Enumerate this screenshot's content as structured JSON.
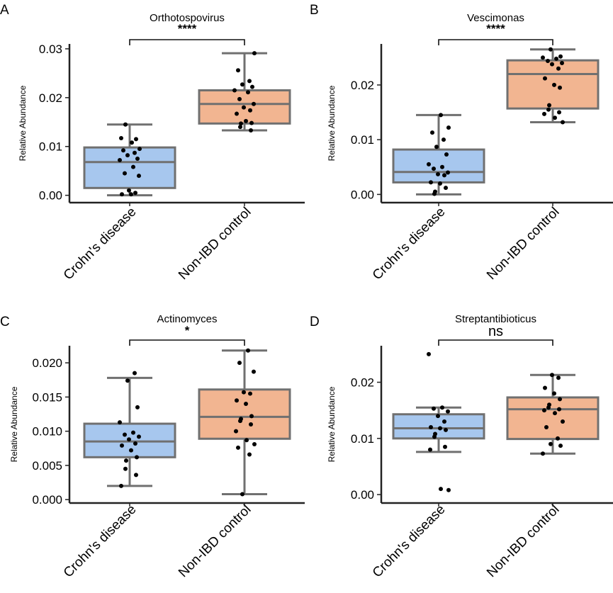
{
  "colors": {
    "crohns": "#a7c7ee",
    "control": "#f2b591",
    "whisker": "#707070",
    "point": "#000000"
  },
  "chart_data": [
    {
      "type": "box",
      "panel": "A",
      "title": "Orthotospovirus",
      "significance": "****",
      "ylabel": "Relative Abundance",
      "ylim": [
        -0.0015,
        0.031
      ],
      "yticks": [
        0,
        0.01,
        0.02,
        0.03
      ],
      "ytick_labels": [
        "0.00",
        "0.01",
        "0.02",
        "0.03"
      ],
      "categories": [
        "Crohn's disease",
        "Non-IBD control"
      ],
      "boxes": [
        {
          "q1": 0.0015,
          "median": 0.0068,
          "q3": 0.0098,
          "whisker_low": 0.0,
          "whisker_high": 0.0145
        },
        {
          "q1": 0.0147,
          "median": 0.0187,
          "q3": 0.0215,
          "whisker_low": 0.0133,
          "whisker_high": 0.0291
        }
      ],
      "points": [
        [
          0.0145,
          0.0115,
          0.0117,
          0.0108,
          0.0095,
          0.0092,
          0.0087,
          0.0082,
          0.0075,
          0.0072,
          0.0058,
          0.0045,
          0.004,
          0.001,
          0.0005,
          0.0002,
          0.0002
        ],
        [
          0.0291,
          0.0256,
          0.0234,
          0.0227,
          0.0222,
          0.0215,
          0.0211,
          0.0197,
          0.0187,
          0.018,
          0.0174,
          0.0167,
          0.0152,
          0.0148,
          0.0147,
          0.014,
          0.0133
        ]
      ]
    },
    {
      "type": "box",
      "panel": "B",
      "title": "Vescimonas",
      "significance": "****",
      "ylabel": "Relative Abundance",
      "ylim": [
        -0.0015,
        0.0275
      ],
      "yticks": [
        0,
        0.01,
        0.02
      ],
      "ytick_labels": [
        "0.00",
        "0.01",
        "0.02"
      ],
      "categories": [
        "Crohn's disease",
        "Non-IBD control"
      ],
      "boxes": [
        {
          "q1": 0.0022,
          "median": 0.0041,
          "q3": 0.0082,
          "whisker_low": 0.0,
          "whisker_high": 0.0145
        },
        {
          "q1": 0.0157,
          "median": 0.022,
          "q3": 0.0245,
          "whisker_low": 0.0132,
          "whisker_high": 0.0265
        }
      ],
      "points": [
        [
          0.0145,
          0.0122,
          0.0113,
          0.01,
          0.0087,
          0.0073,
          0.0055,
          0.005,
          0.0047,
          0.004,
          0.0037,
          0.0035,
          0.0022,
          0.002,
          0.0012,
          0.0005,
          0.0001
        ],
        [
          0.0265,
          0.0252,
          0.025,
          0.0248,
          0.0244,
          0.024,
          0.0238,
          0.023,
          0.0212,
          0.02,
          0.0195,
          0.0163,
          0.0155,
          0.015,
          0.0147,
          0.014,
          0.0132
        ]
      ]
    },
    {
      "type": "box",
      "panel": "C",
      "title": "Actinomyces",
      "significance": "*",
      "ylabel": "Relative Abundance",
      "ylim": [
        -0.0005,
        0.0225
      ],
      "yticks": [
        0,
        0.005,
        0.01,
        0.015,
        0.02
      ],
      "ytick_labels": [
        "0.000",
        "0.005",
        "0.010",
        "0.015",
        "0.020"
      ],
      "categories": [
        "Crohn's disease",
        "Non-IBD control"
      ],
      "boxes": [
        {
          "q1": 0.0062,
          "median": 0.0085,
          "q3": 0.0111,
          "whisker_low": 0.002,
          "whisker_high": 0.0178
        },
        {
          "q1": 0.0089,
          "median": 0.0121,
          "q3": 0.0161,
          "whisker_low": 0.0008,
          "whisker_high": 0.0218
        }
      ],
      "points": [
        [
          0.0185,
          0.0174,
          0.0135,
          0.0113,
          0.0098,
          0.0095,
          0.0092,
          0.0088,
          0.0082,
          0.0079,
          0.0072,
          0.0062,
          0.0057,
          0.0045,
          0.0036,
          0.002
        ],
        [
          0.0218,
          0.02,
          0.0187,
          0.0157,
          0.0155,
          0.0145,
          0.014,
          0.0122,
          0.0118,
          0.0115,
          0.011,
          0.01,
          0.0087,
          0.0081,
          0.0076,
          0.0066,
          0.0008
        ]
      ]
    },
    {
      "type": "box",
      "panel": "D",
      "title": "Streptantibioticus",
      "significance": "ns",
      "ylabel": "Relative Abundance",
      "ylim": [
        -0.0015,
        0.0265
      ],
      "yticks": [
        0,
        0.01,
        0.02
      ],
      "ytick_labels": [
        "0.00",
        "0.01",
        "0.02"
      ],
      "categories": [
        "Crohn's disease",
        "Non-IBD control"
      ],
      "boxes": [
        {
          "q1": 0.01,
          "median": 0.0118,
          "q3": 0.0143,
          "whisker_low": 0.0076,
          "whisker_high": 0.0155
        },
        {
          "q1": 0.0099,
          "median": 0.0152,
          "q3": 0.0173,
          "whisker_low": 0.0073,
          "whisker_high": 0.0213
        }
      ],
      "points": [
        [
          0.025,
          0.0155,
          0.0153,
          0.0148,
          0.014,
          0.013,
          0.012,
          0.0118,
          0.0115,
          0.0108,
          0.0103,
          0.0085,
          0.008,
          0.001,
          0.0008
        ],
        [
          0.0213,
          0.0208,
          0.019,
          0.018,
          0.017,
          0.016,
          0.0155,
          0.0152,
          0.015,
          0.0145,
          0.013,
          0.012,
          0.01,
          0.009,
          0.0087,
          0.0073
        ]
      ]
    }
  ]
}
